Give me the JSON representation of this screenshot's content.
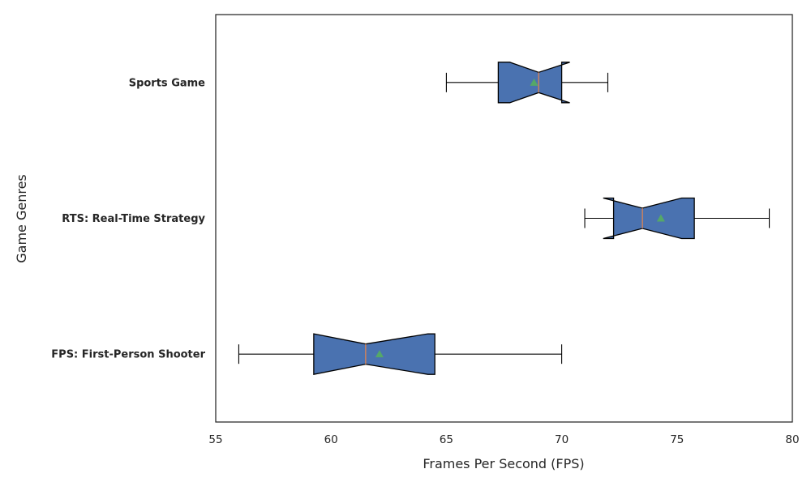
{
  "chart_data": {
    "type": "boxplot",
    "orientation": "horizontal",
    "notched": true,
    "show_means": true,
    "xlabel": "Frames Per Second (FPS)",
    "ylabel": "Game Genres",
    "xlim": [
      55,
      80
    ],
    "xticks": [
      55,
      60,
      65,
      70,
      75,
      80
    ],
    "grid": false,
    "colors": {
      "box_fill": "#4a72b0",
      "box_edge": "#000000",
      "median": "#dd8452",
      "mean_marker": "#55a868",
      "whisker": "#000000"
    },
    "categories": [
      "FPS: First-Person Shooter",
      "RTS: Real-Time Strategy",
      "Sports Game"
    ],
    "series": [
      {
        "category": "FPS: First-Person Shooter",
        "whislo": 56,
        "q1": 59.25,
        "median": 61.5,
        "q3": 64.5,
        "whishi": 70,
        "mean": 62.1,
        "notch_lo": 59.25,
        "notch_hi": 64.2
      },
      {
        "category": "RTS: Real-Time Strategy",
        "whislo": 71,
        "q1": 72.25,
        "median": 73.5,
        "q3": 75.75,
        "whishi": 79,
        "mean": 74.3,
        "notch_lo": 71.8,
        "notch_hi": 75.2
      },
      {
        "category": "Sports Game",
        "whislo": 65,
        "q1": 67.25,
        "median": 69,
        "q3": 70.0,
        "whishi": 72,
        "mean": 68.8,
        "notch_lo": 67.75,
        "notch_hi": 70.35
      }
    ]
  }
}
